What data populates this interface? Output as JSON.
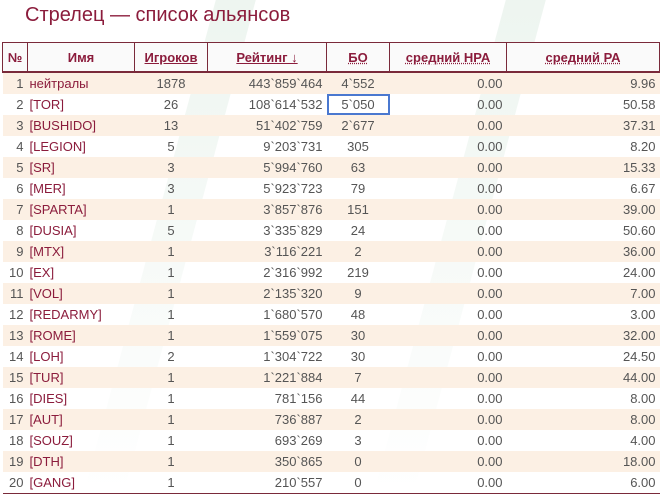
{
  "title": "Стрелец — список альянсов",
  "columns": [
    "№",
    "Имя",
    "Игроков",
    "Рейтинг ↓",
    "БО",
    "средний НРА",
    "средний РА"
  ],
  "rows": [
    [
      "1",
      "нейтралы",
      "1878",
      "443`859`464",
      "4`552",
      "0.00",
      "9.96"
    ],
    [
      "2",
      "[TOR]",
      "26",
      "108`614`532",
      "5`050",
      "0.00",
      "50.58"
    ],
    [
      "3",
      "[BUSHIDO]",
      "13",
      "51`402`759",
      "2`677",
      "0.00",
      "37.31"
    ],
    [
      "4",
      "[LEGION]",
      "5",
      "9`203`731",
      "305",
      "0.00",
      "8.20"
    ],
    [
      "5",
      "[SR]",
      "3",
      "5`994`760",
      "63",
      "0.00",
      "15.33"
    ],
    [
      "6",
      "[MER]",
      "3",
      "5`923`723",
      "79",
      "0.00",
      "6.67"
    ],
    [
      "7",
      "[SPARTA]",
      "1",
      "3`857`876",
      "151",
      "0.00",
      "39.00"
    ],
    [
      "8",
      "[DUSIA]",
      "5",
      "3`335`829",
      "24",
      "0.00",
      "50.60"
    ],
    [
      "9",
      "[MTX]",
      "1",
      "3`116`221",
      "2",
      "0.00",
      "36.00"
    ],
    [
      "10",
      "[EX]",
      "1",
      "2`316`992",
      "219",
      "0.00",
      "24.00"
    ],
    [
      "11",
      "[VOL]",
      "1",
      "2`135`320",
      "9",
      "0.00",
      "7.00"
    ],
    [
      "12",
      "[REDARMY]",
      "1",
      "1`680`570",
      "48",
      "0.00",
      "3.00"
    ],
    [
      "13",
      "[ROME]",
      "1",
      "1`559`075",
      "30",
      "0.00",
      "32.00"
    ],
    [
      "14",
      "[LOH]",
      "2",
      "1`304`722",
      "30",
      "0.00",
      "24.50"
    ],
    [
      "15",
      "[TUR]",
      "1",
      "1`221`884",
      "7",
      "0.00",
      "44.00"
    ],
    [
      "16",
      "[DIES]",
      "1",
      "781`156",
      "44",
      "0.00",
      "8.00"
    ],
    [
      "17",
      "[AUT]",
      "1",
      "736`887",
      "2",
      "0.00",
      "8.00"
    ],
    [
      "18",
      "[SOUZ]",
      "1",
      "693`269",
      "3",
      "0.00",
      "4.00"
    ],
    [
      "19",
      "[DTH]",
      "1",
      "350`865",
      "0",
      "0.00",
      "18.00"
    ],
    [
      "20",
      "[GANG]",
      "1",
      "210`557",
      "0",
      "0.00",
      "6.00"
    ]
  ],
  "colors": {
    "accent": "#8b1c3c",
    "row_alt": "#fcf0e4",
    "selection": "#4a78d0"
  }
}
